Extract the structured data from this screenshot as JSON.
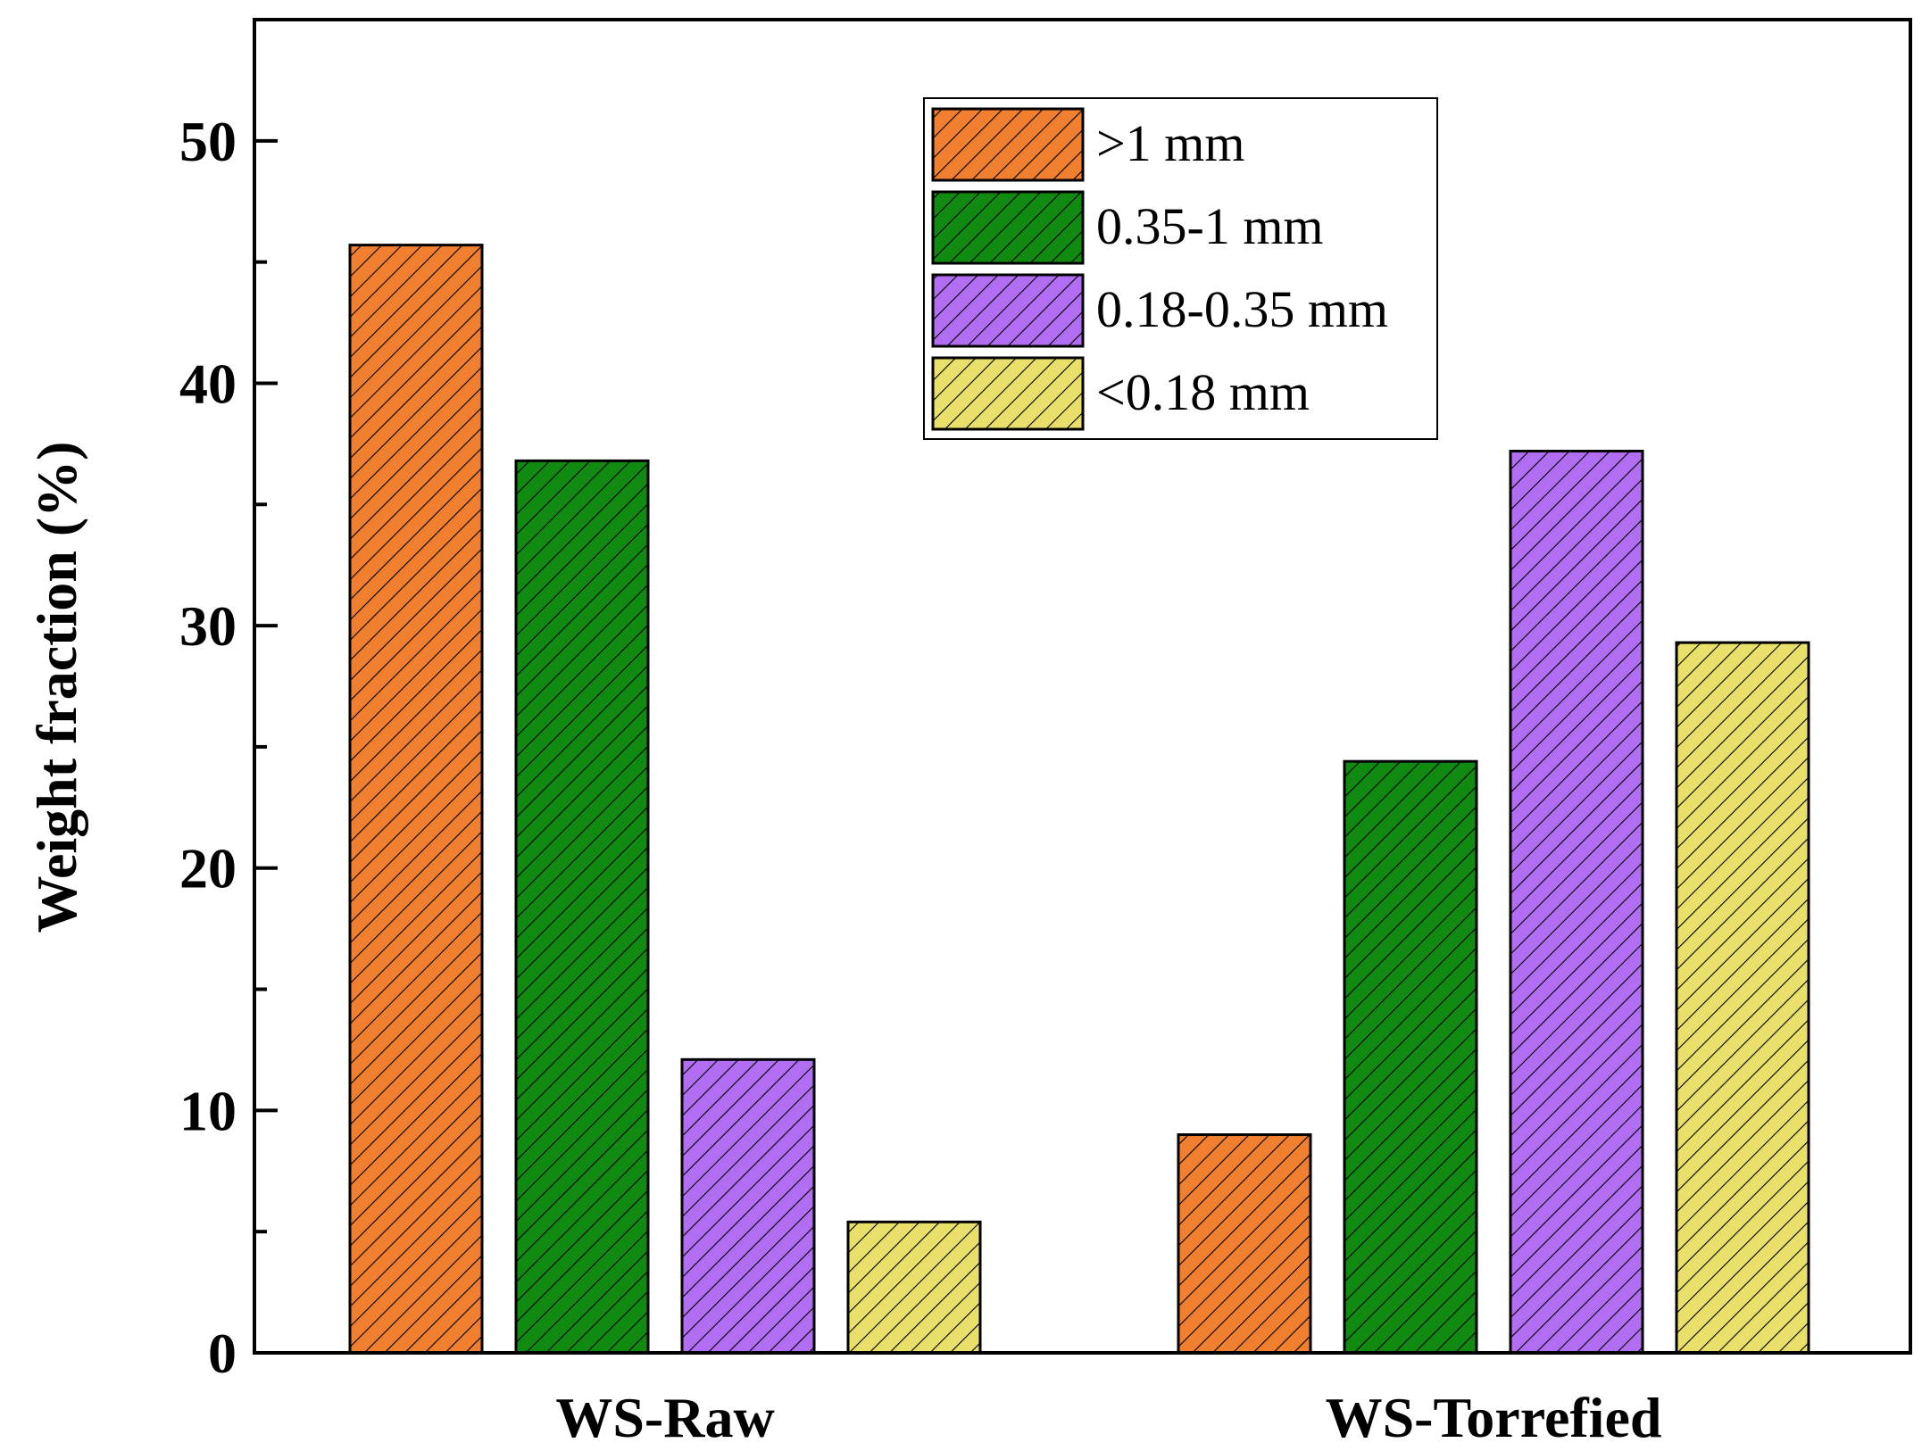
{
  "chart_data": {
    "type": "bar",
    "categories": [
      "WS-Raw",
      "WS-Torrefied"
    ],
    "series": [
      {
        "name": ">1 mm",
        "values": [
          45.7,
          9.0
        ],
        "color": "#f07f2f"
      },
      {
        "name": "0.35-1 mm",
        "values": [
          36.8,
          24.4
        ],
        "color": "#108a10"
      },
      {
        "name": "0.18-0.35 mm",
        "values": [
          12.1,
          37.2
        ],
        "color": "#b26ef2"
      },
      {
        "name": "<0.18 mm",
        "values": [
          5.4,
          29.3
        ],
        "color": "#e8e06a"
      }
    ],
    "title": "",
    "xlabel": "",
    "ylabel": "Weight fraction (%)",
    "ylim": [
      0,
      55
    ],
    "yticks": [
      "0",
      "10",
      "20",
      "30",
      "40",
      "50"
    ],
    "minor_ticks": true,
    "grid": false,
    "legend_position": "top-center",
    "pattern": "diagonal-hatch"
  }
}
